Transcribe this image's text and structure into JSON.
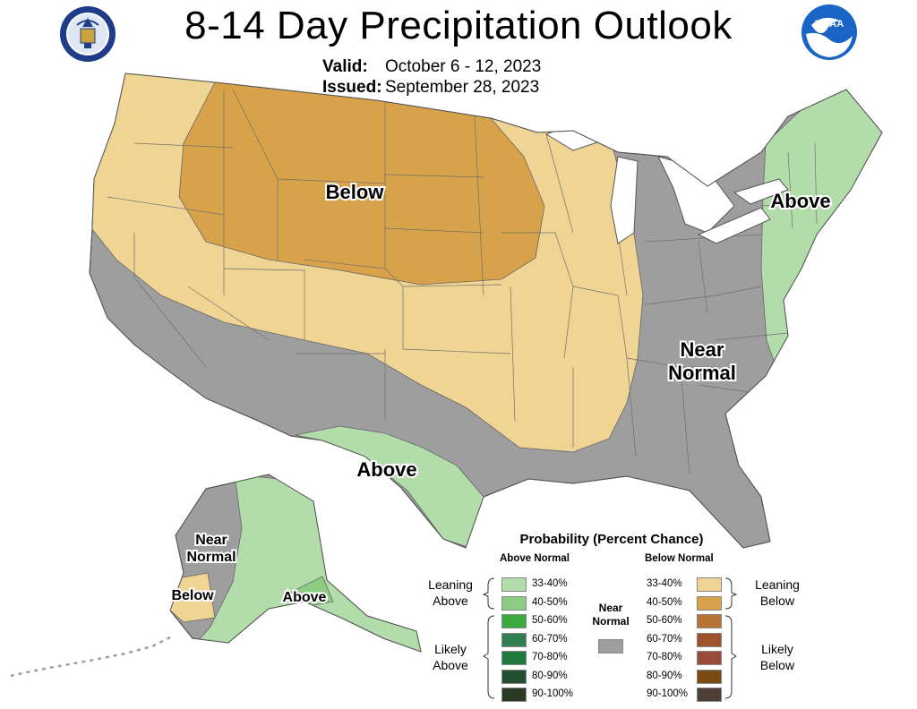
{
  "title": "8-14 Day Precipitation Outlook",
  "valid": {
    "label": "Valid:",
    "value": "October 6 - 12, 2023"
  },
  "issued": {
    "label": "Issued:",
    "value": "September 28, 2023"
  },
  "logos": {
    "left": "doc-seal-icon",
    "right": "noaa-logo-icon",
    "right_text": "NOAA"
  },
  "colors": {
    "below_leaning": "#f0d494",
    "below_40_50": "#d8a24a",
    "above_leaning": "#b3dcab",
    "above_40_50": "#8ccc83",
    "near_normal": "#9e9e9e",
    "water": "#ffffff",
    "border": "#555555"
  },
  "map_labels": {
    "below_north": "Below",
    "above_east": "Above",
    "near_normal_1": "Near",
    "near_normal_2": "Normal",
    "above_texas": "Above",
    "ak_near_1": "Near",
    "ak_near_2": "Normal",
    "ak_below": "Below",
    "ak_above": "Above"
  },
  "legend": {
    "title": "Probability (Percent Chance)",
    "above_head": "Above Normal",
    "below_head": "Below Normal",
    "near_label_1": "Near",
    "near_label_2": "Normal",
    "leaning_above_1": "Leaning",
    "leaning_above_2": "Above",
    "likely_above_1": "Likely",
    "likely_above_2": "Above",
    "leaning_below_1": "Leaning",
    "leaning_below_2": "Below",
    "likely_below_1": "Likely",
    "likely_below_2": "Below",
    "above": [
      {
        "label": "33-40%",
        "color": "#b3dcab"
      },
      {
        "label": "40-50%",
        "color": "#8ccc83"
      },
      {
        "label": "50-60%",
        "color": "#3daa3d"
      },
      {
        "label": "60-70%",
        "color": "#2f7f53"
      },
      {
        "label": "70-80%",
        "color": "#1f7a3c"
      },
      {
        "label": "80-90%",
        "color": "#234e30"
      },
      {
        "label": "90-100%",
        "color": "#2b3a22"
      }
    ],
    "below": [
      {
        "label": "33-40%",
        "color": "#f0d494"
      },
      {
        "label": "40-50%",
        "color": "#d8a24a"
      },
      {
        "label": "50-60%",
        "color": "#b87333"
      },
      {
        "label": "60-70%",
        "color": "#a0522d"
      },
      {
        "label": "70-80%",
        "color": "#9b4a3a"
      },
      {
        "label": "80-90%",
        "color": "#7a4a12"
      },
      {
        "label": "90-100%",
        "color": "#4e3f36"
      }
    ],
    "near_color": "#9e9e9e"
  }
}
